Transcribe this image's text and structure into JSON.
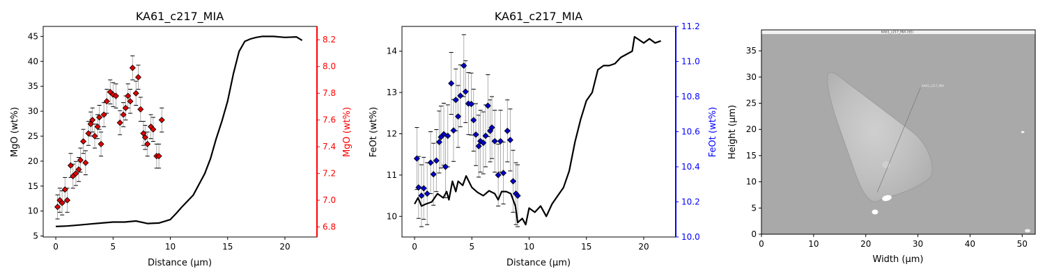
{
  "chart_data": [
    {
      "type": "scatter",
      "title": "KA61_c217_MIA",
      "xlabel": "Distance (µm)",
      "ylabel": "MgO (wt%)",
      "ylabel_right": "MgO (wt%)",
      "xlim": [
        -1.1,
        22.8
      ],
      "ylim": [
        4.8,
        47.0
      ],
      "ylim_right": [
        6.725,
        8.3
      ],
      "xticks": [
        "0",
        "5",
        "10",
        "15",
        "20"
      ],
      "yticks": [
        "5",
        "10",
        "15",
        "20",
        "25",
        "30",
        "35",
        "40",
        "45"
      ],
      "yticks_right": [
        "6.8",
        "7.0",
        "7.2",
        "7.4",
        "7.6",
        "7.8",
        "8.0",
        "8.2"
      ],
      "right_axis_color": "#ff0000",
      "marker_color": "#e00000",
      "grid": false,
      "series": [
        {
          "axis": "right",
          "marker": "diamond",
          "points": [
            [
              0.15,
              6.95,
              0.09
            ],
            [
              0.35,
              7.0,
              0.09
            ],
            [
              0.55,
              6.98,
              0.09
            ],
            [
              0.8,
              7.08,
              0.09
            ],
            [
              1.0,
              7.0,
              0.09
            ],
            [
              1.3,
              7.26,
              0.09
            ],
            [
              1.5,
              7.18,
              0.09
            ],
            [
              1.75,
              7.2,
              0.09
            ],
            [
              2.0,
              7.23,
              0.09
            ],
            [
              2.15,
              7.3,
              0.09
            ],
            [
              2.4,
              7.44,
              0.09
            ],
            [
              2.6,
              7.28,
              0.09
            ],
            [
              2.85,
              7.5,
              0.09
            ],
            [
              3.05,
              7.57,
              0.09
            ],
            [
              3.2,
              7.6,
              0.09
            ],
            [
              3.4,
              7.48,
              0.09
            ],
            [
              3.65,
              7.55,
              0.09
            ],
            [
              3.8,
              7.62,
              0.09
            ],
            [
              3.95,
              7.42,
              0.09
            ],
            [
              4.2,
              7.64,
              0.09
            ],
            [
              4.45,
              7.74,
              0.09
            ],
            [
              4.75,
              7.81,
              0.09
            ],
            [
              5.0,
              7.79,
              0.09
            ],
            [
              5.25,
              7.78,
              0.09
            ],
            [
              5.6,
              7.58,
              0.09
            ],
            [
              5.9,
              7.64,
              0.09
            ],
            [
              6.1,
              7.69,
              0.09
            ],
            [
              6.3,
              7.78,
              0.09
            ],
            [
              6.5,
              7.74,
              0.09
            ],
            [
              6.7,
              7.99,
              0.09
            ],
            [
              7.0,
              7.8,
              0.09
            ],
            [
              7.2,
              7.92,
              0.09
            ],
            [
              7.4,
              7.68,
              0.09
            ],
            [
              7.65,
              7.5,
              0.09
            ],
            [
              7.8,
              7.47,
              0.09
            ],
            [
              8.0,
              7.42,
              0.09
            ],
            [
              8.3,
              7.55,
              0.09
            ],
            [
              8.5,
              7.53,
              0.09
            ],
            [
              8.8,
              7.33,
              0.09
            ],
            [
              9.0,
              7.33,
              0.09
            ],
            [
              9.25,
              7.6,
              0.09
            ]
          ]
        },
        {
          "axis": "left",
          "style": "line",
          "points": [
            [
              0,
              6.9
            ],
            [
              1,
              7.0
            ],
            [
              2,
              7.2
            ],
            [
              3,
              7.4
            ],
            [
              4,
              7.6
            ],
            [
              5,
              7.8
            ],
            [
              6,
              7.8
            ],
            [
              7,
              8.0
            ],
            [
              8,
              7.5
            ],
            [
              9,
              7.6
            ],
            [
              10,
              8.3
            ],
            [
              10.5,
              9.5
            ],
            [
              11,
              10.8
            ],
            [
              12,
              13.2
            ],
            [
              13,
              17.5
            ],
            [
              13.5,
              20.5
            ],
            [
              14,
              24.5
            ],
            [
              14.5,
              28.0
            ],
            [
              15,
              32.0
            ],
            [
              15.5,
              37.5
            ],
            [
              16,
              42.0
            ],
            [
              16.5,
              44.0
            ],
            [
              17,
              44.5
            ],
            [
              17.5,
              44.8
            ],
            [
              18,
              45.0
            ],
            [
              19,
              45.0
            ],
            [
              20,
              44.8
            ],
            [
              21,
              44.9
            ],
            [
              21.5,
              44.2
            ]
          ]
        }
      ]
    },
    {
      "type": "scatter",
      "title": "KA61_c217_MIA",
      "xlabel": "Distance (µm)",
      "ylabel": "FeOt (wt%)",
      "ylabel_right": "FeOt (wt%)",
      "xlim": [
        -1.1,
        22.8
      ],
      "ylim": [
        9.5,
        14.6
      ],
      "ylim_right": [
        10.0,
        11.2
      ],
      "xticks": [
        "0",
        "5",
        "10",
        "15",
        "20"
      ],
      "yticks": [
        "10",
        "11",
        "12",
        "13",
        "14"
      ],
      "yticks_right": [
        "10.0",
        "10.2",
        "10.4",
        "10.6",
        "10.8",
        "11.0",
        "11.2"
      ],
      "right_axis_color": "#0000ff",
      "marker_color": "#0000cc",
      "grid": false,
      "series": [
        {
          "axis": "left",
          "marker": "diamond",
          "points": [
            [
              0.2,
              11.4,
              0.75
            ],
            [
              0.35,
              10.7,
              0.75
            ],
            [
              0.6,
              10.5,
              0.75
            ],
            [
              0.8,
              10.68,
              0.75
            ],
            [
              1.1,
              10.55,
              0.75
            ],
            [
              1.4,
              11.3,
              0.75
            ],
            [
              1.65,
              11.02,
              0.75
            ],
            [
              1.9,
              11.35,
              0.75
            ],
            [
              2.15,
              11.8,
              0.75
            ],
            [
              2.3,
              11.92,
              0.75
            ],
            [
              2.55,
              11.99,
              0.75
            ],
            [
              2.7,
              11.2,
              0.75
            ],
            [
              2.9,
              11.95,
              0.75
            ],
            [
              3.2,
              13.22,
              0.75
            ],
            [
              3.4,
              12.08,
              0.75
            ],
            [
              3.6,
              12.82,
              0.75
            ],
            [
              3.8,
              12.42,
              0.75
            ],
            [
              4.0,
              12.92,
              0.75
            ],
            [
              4.3,
              13.65,
              0.75
            ],
            [
              4.45,
              13.02,
              0.75
            ],
            [
              4.7,
              12.73,
              0.75
            ],
            [
              4.95,
              12.72,
              0.75
            ],
            [
              5.15,
              12.33,
              0.75
            ],
            [
              5.35,
              11.98,
              0.75
            ],
            [
              5.6,
              11.7,
              0.75
            ],
            [
              5.75,
              11.82,
              0.75
            ],
            [
              6.0,
              11.78,
              0.75
            ],
            [
              6.2,
              11.95,
              0.75
            ],
            [
              6.4,
              12.68,
              0.75
            ],
            [
              6.6,
              12.07,
              0.75
            ],
            [
              6.75,
              12.15,
              0.75
            ],
            [
              7.0,
              11.82,
              0.75
            ],
            [
              7.3,
              11.0,
              0.75
            ],
            [
              7.5,
              11.82,
              0.75
            ],
            [
              7.75,
              11.05,
              0.75
            ],
            [
              8.1,
              12.07,
              0.75
            ],
            [
              8.35,
              11.85,
              0.75
            ],
            [
              8.6,
              10.85,
              0.75
            ],
            [
              8.85,
              10.55,
              0.75
            ],
            [
              9.0,
              10.5,
              0.75
            ]
          ]
        },
        {
          "axis": "left",
          "style": "line",
          "points": [
            [
              0,
              10.3
            ],
            [
              0.3,
              10.45
            ],
            [
              0.6,
              10.25
            ],
            [
              1.0,
              10.3
            ],
            [
              1.5,
              10.35
            ],
            [
              2.0,
              10.55
            ],
            [
              2.5,
              10.45
            ],
            [
              2.8,
              10.6
            ],
            [
              3.0,
              10.4
            ],
            [
              3.3,
              10.85
            ],
            [
              3.6,
              10.6
            ],
            [
              3.8,
              10.85
            ],
            [
              4.2,
              10.75
            ],
            [
              4.5,
              10.98
            ],
            [
              5.0,
              10.7
            ],
            [
              5.5,
              10.58
            ],
            [
              6.0,
              10.5
            ],
            [
              6.5,
              10.62
            ],
            [
              7.0,
              10.55
            ],
            [
              7.3,
              10.4
            ],
            [
              7.6,
              10.6
            ],
            [
              8.0,
              10.6
            ],
            [
              8.4,
              10.55
            ],
            [
              8.8,
              10.25
            ],
            [
              9.0,
              9.85
            ],
            [
              9.4,
              9.95
            ],
            [
              9.7,
              9.8
            ],
            [
              10.0,
              10.2
            ],
            [
              10.5,
              10.1
            ],
            [
              11.0,
              10.25
            ],
            [
              11.5,
              10.0
            ],
            [
              12.0,
              10.3
            ],
            [
              12.5,
              10.5
            ],
            [
              13.0,
              10.7
            ],
            [
              13.5,
              11.1
            ],
            [
              14.0,
              11.8
            ],
            [
              14.5,
              12.35
            ],
            [
              15.0,
              12.8
            ],
            [
              15.5,
              13.0
            ],
            [
              16.0,
              13.55
            ],
            [
              16.5,
              13.65
            ],
            [
              17.0,
              13.65
            ],
            [
              17.5,
              13.7
            ],
            [
              18.0,
              13.85
            ],
            [
              19.0,
              14.0
            ],
            [
              19.2,
              14.35
            ],
            [
              20.0,
              14.2
            ],
            [
              20.5,
              14.3
            ],
            [
              21.0,
              14.2
            ],
            [
              21.5,
              14.25
            ]
          ]
        }
      ]
    },
    {
      "type": "image",
      "title": "",
      "xlabel": "Width (µm)",
      "ylabel": "Height (µm)",
      "xlim": [
        0,
        52.5
      ],
      "ylim": [
        0,
        39
      ],
      "xticks": [
        "0",
        "10",
        "20",
        "30",
        "40",
        "50"
      ],
      "yticks": [
        "0",
        "5",
        "10",
        "15",
        "20",
        "25",
        "30",
        "35"
      ],
      "image_caption": "KA61_c217_MIA (SE)",
      "line_label": "KA61_c217_MIA",
      "trace_line": [
        [
          22.2,
          8.0
        ],
        [
          30.5,
          28.0
        ]
      ]
    }
  ]
}
